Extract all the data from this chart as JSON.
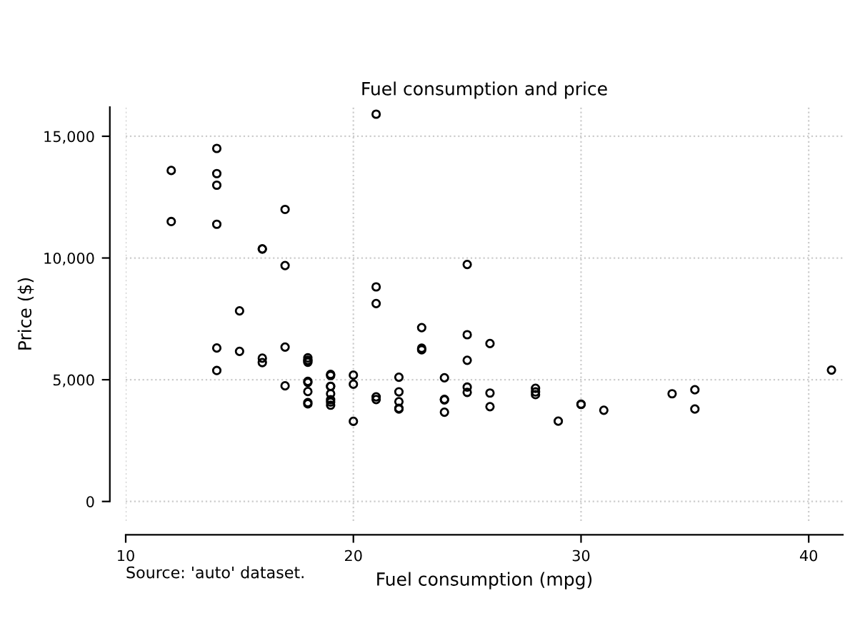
{
  "chart_data": {
    "type": "scatter",
    "title": "Fuel consumption and price",
    "xlabel": "Fuel consumption (mpg)",
    "ylabel": "Price ($)",
    "annotations": [
      "Source: 'auto' dataset."
    ],
    "x": [
      22,
      17,
      22,
      20,
      15,
      18,
      26,
      20,
      16,
      19,
      14,
      14,
      21,
      29,
      16,
      22,
      22,
      24,
      19,
      30,
      18,
      16,
      17,
      28,
      21,
      12,
      12,
      14,
      22,
      14,
      15,
      18,
      14,
      20,
      21,
      19,
      19,
      18,
      19,
      24,
      16,
      28,
      34,
      25,
      26,
      18,
      18,
      18,
      19,
      19,
      19,
      24,
      17,
      23,
      25,
      23,
      35,
      24,
      21,
      21,
      25,
      28,
      30,
      14,
      26,
      35,
      18,
      31,
      18,
      23,
      41,
      25,
      25,
      17
    ],
    "series": [
      {
        "color": "#000000",
        "values": [
          4099,
          4749,
          3799,
          4816,
          7827,
          5788,
          4453,
          5189,
          10372,
          4082,
          11385,
          14500,
          15906,
          3299,
          5705,
          4504,
          5104,
          3667,
          3955,
          3984,
          4010,
          5886,
          6342,
          4389,
          4187,
          11497,
          13594,
          13466,
          3829,
          5379,
          6165,
          4516,
          6303,
          3291,
          8814,
          5172,
          4733,
          4890,
          4181,
          4195,
          10371,
          4647,
          4425,
          4482,
          6486,
          4060,
          5798,
          4934,
          5222,
          4723,
          4424,
          4172,
          9690,
          6295,
          9735,
          6229,
          4589,
          5079,
          8129,
          4296,
          5799,
          4499,
          3995,
          12990,
          3895,
          3798,
          5899,
          3748,
          5719,
          7140,
          5397,
          4697,
          6850,
          11995
        ]
      }
    ],
    "xlim": [
      10,
      41.5
    ],
    "xticks": [
      10,
      20,
      30,
      40
    ],
    "ylim": [
      -800,
      16200
    ],
    "yticks": [
      0,
      {
        "value": 5000,
        "label": "5,000"
      },
      {
        "value": 10000,
        "label": "10,000"
      },
      {
        "value": 15000,
        "label": "15,000"
      }
    ],
    "grid": true,
    "marker": "circle"
  }
}
